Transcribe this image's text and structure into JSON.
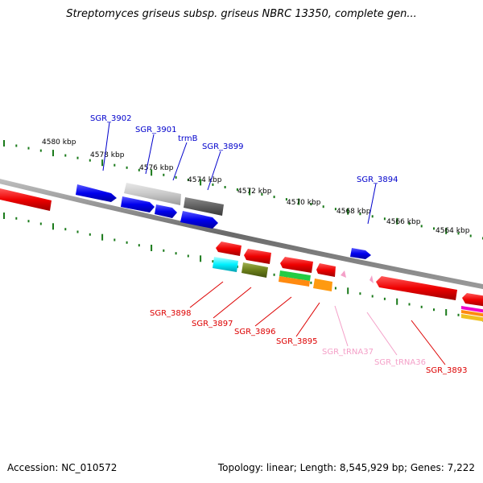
{
  "title": "Streptomyces griseus subsp. griseus NBRC 13350, complete gen...",
  "footer": {
    "accession": "Accession: NC_010572",
    "summary": "Topology: linear; Length: 8,545,929 bp; Genes: 7,222"
  },
  "scale_labels": [
    "4580 kbp",
    "4578 kbp",
    "4576 kbp",
    "4574 kbp",
    "4572 kbp",
    "4570 kbp",
    "4568 kbp",
    "4566 kbp",
    "4564 kbp"
  ],
  "gene_labels_top": [
    "SGR_3902",
    "SGR_3901",
    "trmB",
    "SGR_3899",
    "SGR_3894"
  ],
  "gene_labels_bottom": [
    "SGR_3898",
    "SGR_3897",
    "SGR_3896",
    "SGR_3895",
    "SGR_tRNA37",
    "SGR_tRNA36",
    "SGR_3893"
  ],
  "colors": {
    "forward_cds": "#0000ee",
    "reverse_cds": "#ee0000",
    "trna": "#f4a0c8",
    "backbone": "#7a7a7a",
    "tick": "#1a7a1a"
  }
}
